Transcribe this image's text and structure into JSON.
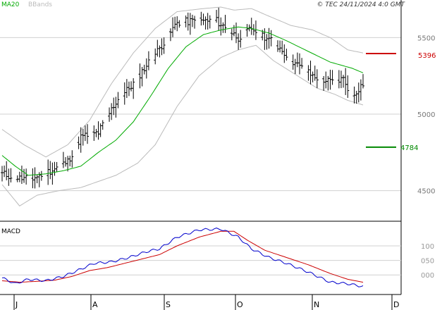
{
  "header": {
    "ma_label": "MA20",
    "bb_label": "BBands",
    "copyright": "© TEC 24/11/2024 4:0 GMT"
  },
  "colors": {
    "ma": "#00aa00",
    "bbands": "#bbbbbb",
    "bars": "#000000",
    "resistance": "#cc0000",
    "support": "#008800",
    "macd": "#0000cc",
    "signal": "#cc0000",
    "grid": "#d0d0d0"
  },
  "chart_data": [
    {
      "type": "ohlc",
      "title": "",
      "x_ticks": [
        "J",
        "A",
        "S",
        "O",
        "N",
        "D"
      ],
      "y_ticks": [
        4500,
        5000,
        5500
      ],
      "ylim": [
        4300,
        5700
      ],
      "levels": [
        {
          "name": "resistance",
          "value": 5396,
          "label": "5396"
        },
        {
          "name": "support",
          "value": 4784,
          "label": "4784"
        }
      ],
      "close_anchors": [
        [
          0,
          4610
        ],
        [
          8,
          4580
        ],
        [
          14,
          4580
        ],
        [
          22,
          4630
        ],
        [
          30,
          4690
        ],
        [
          36,
          4850
        ],
        [
          44,
          4880
        ],
        [
          52,
          5080
        ],
        [
          60,
          5200
        ],
        [
          66,
          5320
        ],
        [
          72,
          5430
        ],
        [
          80,
          5600
        ],
        [
          90,
          5610
        ],
        [
          98,
          5610
        ],
        [
          104,
          5540
        ],
        [
          108,
          5500
        ],
        [
          114,
          5560
        ],
        [
          122,
          5490
        ],
        [
          128,
          5420
        ],
        [
          134,
          5330
        ],
        [
          142,
          5250
        ],
        [
          150,
          5210
        ],
        [
          156,
          5230
        ],
        [
          160,
          5120
        ],
        [
          165,
          5200
        ]
      ],
      "ma_anchors": [
        [
          0,
          4730
        ],
        [
          6,
          4660
        ],
        [
          12,
          4600
        ],
        [
          20,
          4610
        ],
        [
          28,
          4630
        ],
        [
          36,
          4660
        ],
        [
          44,
          4750
        ],
        [
          52,
          4830
        ],
        [
          60,
          4950
        ],
        [
          68,
          5120
        ],
        [
          76,
          5300
        ],
        [
          84,
          5440
        ],
        [
          92,
          5520
        ],
        [
          100,
          5550
        ],
        [
          108,
          5570
        ],
        [
          114,
          5560
        ],
        [
          122,
          5530
        ],
        [
          130,
          5480
        ],
        [
          140,
          5410
        ],
        [
          150,
          5340
        ],
        [
          160,
          5300
        ],
        [
          165,
          5270
        ]
      ],
      "bb_upper_anchors": [
        [
          0,
          4900
        ],
        [
          10,
          4800
        ],
        [
          20,
          4720
        ],
        [
          30,
          4800
        ],
        [
          40,
          4960
        ],
        [
          50,
          5200
        ],
        [
          60,
          5400
        ],
        [
          70,
          5560
        ],
        [
          80,
          5670
        ],
        [
          92,
          5690
        ],
        [
          100,
          5700
        ],
        [
          106,
          5680
        ],
        [
          114,
          5690
        ],
        [
          122,
          5640
        ],
        [
          132,
          5580
        ],
        [
          142,
          5550
        ],
        [
          150,
          5500
        ],
        [
          158,
          5420
        ],
        [
          165,
          5400
        ]
      ],
      "bb_lower_anchors": [
        [
          0,
          4540
        ],
        [
          8,
          4400
        ],
        [
          16,
          4470
        ],
        [
          26,
          4500
        ],
        [
          36,
          4520
        ],
        [
          44,
          4560
        ],
        [
          52,
          4600
        ],
        [
          62,
          4680
        ],
        [
          70,
          4800
        ],
        [
          80,
          5050
        ],
        [
          90,
          5250
        ],
        [
          100,
          5370
        ],
        [
          108,
          5420
        ],
        [
          116,
          5450
        ],
        [
          124,
          5350
        ],
        [
          134,
          5260
        ],
        [
          144,
          5170
        ],
        [
          152,
          5130
        ],
        [
          158,
          5090
        ],
        [
          165,
          5060
        ]
      ]
    },
    {
      "type": "line",
      "title": "MACD",
      "y_ticks": [
        100,
        50,
        0
      ],
      "y_tick_labels": [
        "100",
        "050",
        "000"
      ],
      "ylim": [
        -60,
        175
      ],
      "series": [
        {
          "name": "",
          "anchors": [
            [
              0,
              -10
            ],
            [
              6,
              -30
            ],
            [
              12,
              -15
            ],
            [
              20,
              -20
            ],
            [
              28,
              -5
            ],
            [
              36,
              20
            ],
            [
              42,
              40
            ],
            [
              50,
              45
            ],
            [
              58,
              60
            ],
            [
              66,
              80
            ],
            [
              72,
              90
            ],
            [
              80,
              130
            ],
            [
              90,
              155
            ],
            [
              100,
              158
            ],
            [
              108,
              130
            ],
            [
              114,
              90
            ],
            [
              122,
              60
            ],
            [
              130,
              40
            ],
            [
              140,
              10
            ],
            [
              150,
              -25
            ],
            [
              158,
              -30
            ],
            [
              165,
              -40
            ]
          ]
        },
        {
          "name": "",
          "anchors": [
            [
              0,
              -20
            ],
            [
              8,
              -25
            ],
            [
              16,
              -22
            ],
            [
              24,
              -18
            ],
            [
              32,
              -5
            ],
            [
              40,
              15
            ],
            [
              48,
              25
            ],
            [
              56,
              40
            ],
            [
              64,
              55
            ],
            [
              72,
              70
            ],
            [
              80,
              100
            ],
            [
              90,
              130
            ],
            [
              100,
              150
            ],
            [
              106,
              150
            ],
            [
              112,
              120
            ],
            [
              120,
              85
            ],
            [
              130,
              60
            ],
            [
              140,
              35
            ],
            [
              150,
              5
            ],
            [
              158,
              -15
            ],
            [
              165,
              -25
            ]
          ]
        }
      ]
    }
  ]
}
